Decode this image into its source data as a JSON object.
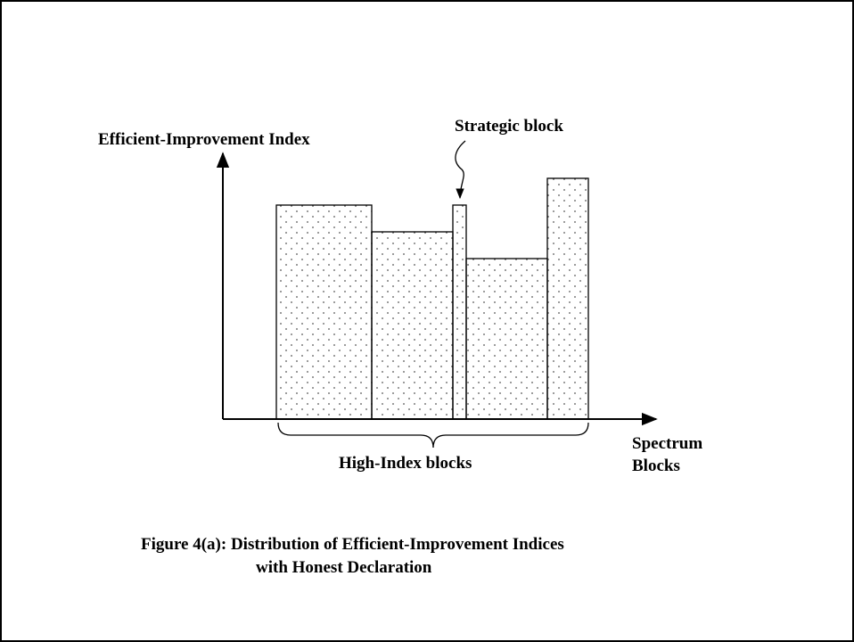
{
  "axis": {
    "y_label": "Efficient-Improvement Index",
    "x_label_lines": [
      "Spectrum",
      "Blocks"
    ]
  },
  "annotations": {
    "strategic": "Strategic block",
    "brace": "High-Index blocks"
  },
  "caption": {
    "lines": [
      "Figure 4(a): Distribution of Efficient-Improvement Indices",
      "with Honest Declaration"
    ]
  }
}
